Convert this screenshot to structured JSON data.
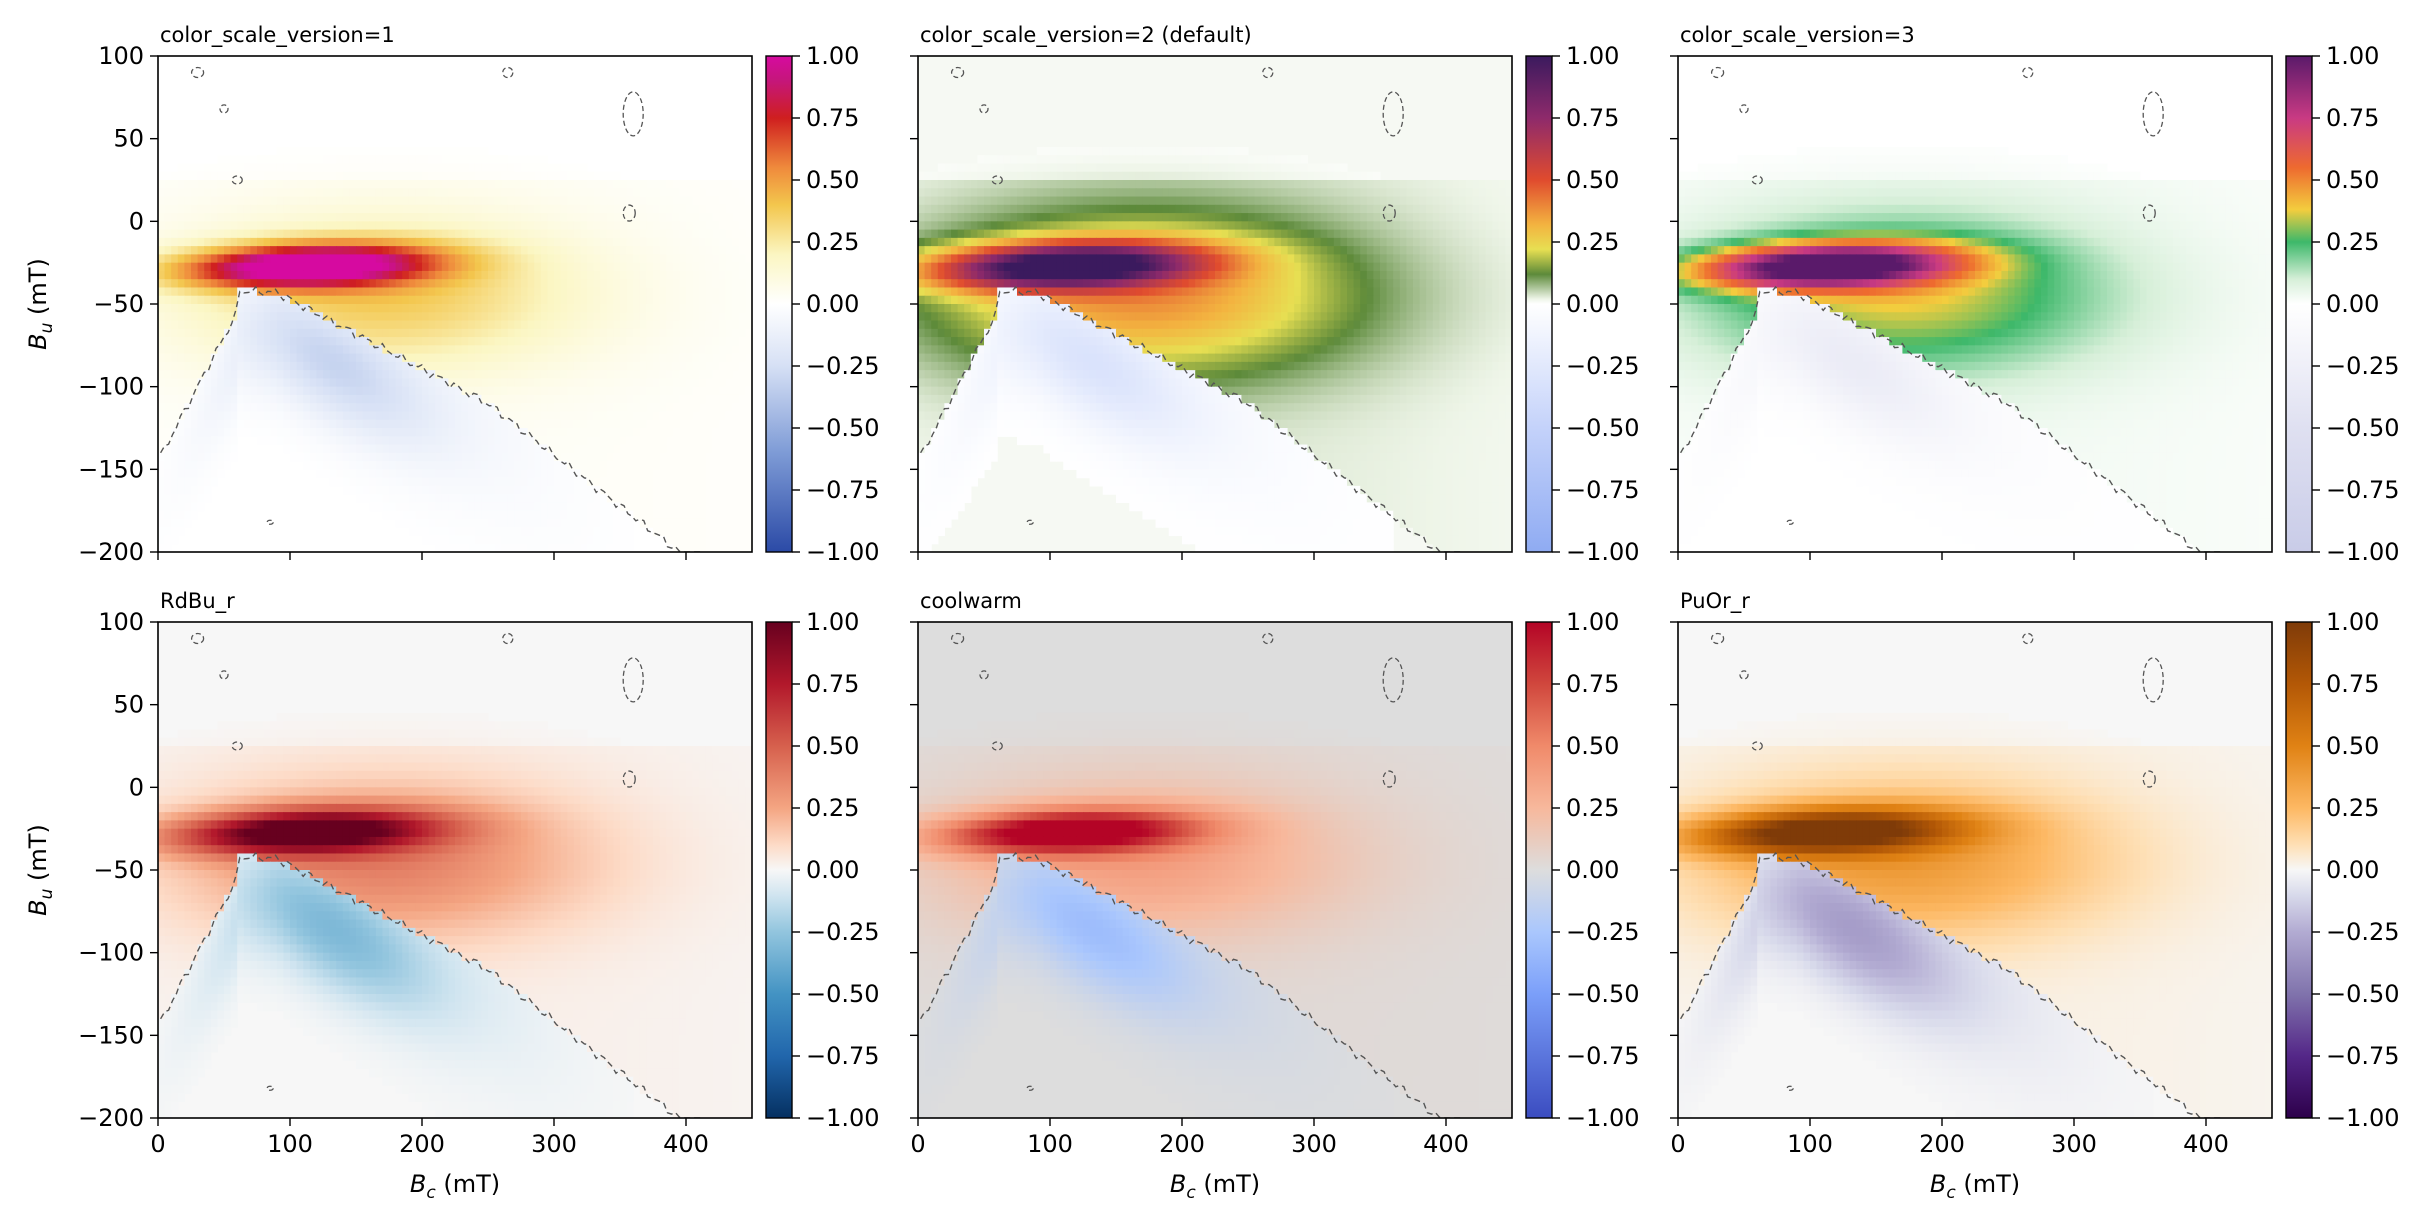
{
  "chart_data": {
    "type": "heatmap",
    "panel_count": 6,
    "layout": "2x3 grid, shared axes",
    "xlabel": "B_c (mT)",
    "ylabel": "B_u (mT)",
    "xlim": [
      0,
      450
    ],
    "ylim": [
      -200,
      100
    ],
    "x_ticks": [
      0,
      100,
      200,
      300,
      400
    ],
    "y_ticks": [
      100,
      50,
      0,
      -50,
      -100,
      -150,
      -200
    ],
    "colorbar_range": [
      -1.0,
      1.0
    ],
    "colorbar_ticks": [
      "1.00",
      "0.75",
      "0.50",
      "0.25",
      "0.00",
      "−0.25",
      "−0.50",
      "−0.75",
      "−1.00"
    ],
    "contour_style": "dashed grey (zero level)",
    "field_features": [
      {
        "name": "positive ridge",
        "center": [
          110,
          -27
        ],
        "peak_value": 1.0
      },
      {
        "name": "negative lobe",
        "center": [
          130,
          -80
        ],
        "peak_value": -0.3
      }
    ],
    "panels": [
      {
        "title": "color_scale_version=1",
        "colormap": [
          [
            -1.0,
            "#2b4aa6"
          ],
          [
            -0.6,
            "#7e9bd6"
          ],
          [
            -0.25,
            "#d6e0f5"
          ],
          [
            0.0,
            "#ffffff"
          ],
          [
            0.2,
            "#fbf6c2"
          ],
          [
            0.4,
            "#f3c64d"
          ],
          [
            0.55,
            "#ef8a3c"
          ],
          [
            0.75,
            "#cf1f1f"
          ],
          [
            0.9,
            "#c5167a"
          ],
          [
            1.0,
            "#d60aa0"
          ]
        ],
        "background": "#ffffff"
      },
      {
        "title": "color_scale_version=2 (default)",
        "colormap": [
          [
            -1.0,
            "#8fabf2"
          ],
          [
            -0.5,
            "#c4d2fa"
          ],
          [
            0.0,
            "#ffffff"
          ],
          [
            0.02,
            "#eef5e8"
          ],
          [
            0.12,
            "#5d8a3a"
          ],
          [
            0.22,
            "#e7df52"
          ],
          [
            0.32,
            "#f3b340"
          ],
          [
            0.5,
            "#e04b2e"
          ],
          [
            0.75,
            "#8e2a6b"
          ],
          [
            1.0,
            "#3b1a5e"
          ]
        ],
        "background": "#f6f9f3"
      },
      {
        "title": "color_scale_version=3",
        "colormap": [
          [
            -1.0,
            "#c9cce8"
          ],
          [
            -0.5,
            "#dfe0f1"
          ],
          [
            0.0,
            "#ffffff"
          ],
          [
            0.1,
            "#d6efd8"
          ],
          [
            0.25,
            "#3db86a"
          ],
          [
            0.38,
            "#f3cd3e"
          ],
          [
            0.55,
            "#ee6a2f"
          ],
          [
            0.75,
            "#c93a83"
          ],
          [
            1.0,
            "#5a1a6a"
          ]
        ],
        "background": "#ffffff"
      },
      {
        "title": "RdBu_r",
        "colormap": [
          [
            -1.0,
            "#053061"
          ],
          [
            -0.75,
            "#2166ac"
          ],
          [
            -0.5,
            "#4393c3"
          ],
          [
            -0.25,
            "#92c5de"
          ],
          [
            -0.1,
            "#d1e5f0"
          ],
          [
            0.0,
            "#f7f7f7"
          ],
          [
            0.1,
            "#fddbc7"
          ],
          [
            0.25,
            "#f4a582"
          ],
          [
            0.5,
            "#d6604d"
          ],
          [
            0.75,
            "#b2182b"
          ],
          [
            1.0,
            "#67001f"
          ]
        ],
        "background": "#f7f7f7"
      },
      {
        "title": "coolwarm",
        "colormap": [
          [
            -1.0,
            "#3b4cc0"
          ],
          [
            -0.5,
            "#7b9ff9"
          ],
          [
            -0.25,
            "#aac7fd"
          ],
          [
            0.0,
            "#dddddd"
          ],
          [
            0.25,
            "#f7b89c"
          ],
          [
            0.5,
            "#f08a6a"
          ],
          [
            0.75,
            "#d0473d"
          ],
          [
            1.0,
            "#b40426"
          ]
        ],
        "background": "#dddddd"
      },
      {
        "title": "PuOr_r",
        "colormap": [
          [
            -1.0,
            "#2d004b"
          ],
          [
            -0.75,
            "#542788"
          ],
          [
            -0.5,
            "#8073ac"
          ],
          [
            -0.25,
            "#b2abd2"
          ],
          [
            -0.1,
            "#d8daeb"
          ],
          [
            0.0,
            "#f7f7f7"
          ],
          [
            0.1,
            "#fee0b6"
          ],
          [
            0.25,
            "#fdb863"
          ],
          [
            0.5,
            "#e08214"
          ],
          [
            0.75,
            "#b35806"
          ],
          [
            1.0,
            "#7f3b08"
          ]
        ],
        "background": "#f7f7f7"
      }
    ]
  }
}
